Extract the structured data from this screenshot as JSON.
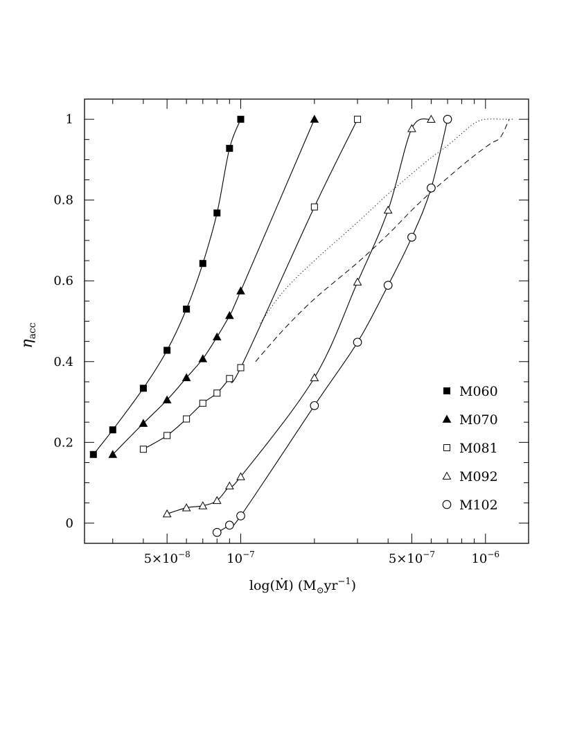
{
  "chart_data": {
    "type": "scatter",
    "xscale": "log",
    "xlim": [
      2.3e-08,
      1.5e-06
    ],
    "ylim": [
      -0.05,
      1.05
    ],
    "xlabel": "log(Ṁ)  (M",
    "xlabel_sub": "⊙",
    "xlabel_tail": "yr",
    "xlabel_sup": "−1",
    "xlabel_close": ")",
    "ylabel": "η",
    "ylabel_sub": "acc",
    "x_tick_labels": [
      {
        "value": 5e-08,
        "mant": "5×10",
        "exp": "−8"
      },
      {
        "value": 1e-07,
        "mant": "10",
        "exp": "−7"
      },
      {
        "value": 5e-07,
        "mant": "5×10",
        "exp": "−7"
      },
      {
        "value": 1e-06,
        "mant": "10",
        "exp": "−6"
      }
    ],
    "y_tick_labels": [
      {
        "value": 0,
        "label": "0"
      },
      {
        "value": 0.2,
        "label": "0.2"
      },
      {
        "value": 0.4,
        "label": "0.4"
      },
      {
        "value": 0.6,
        "label": "0.6"
      },
      {
        "value": 0.8,
        "label": "0.8"
      },
      {
        "value": 1.0,
        "label": "1"
      }
    ],
    "series": [
      {
        "name": "M060",
        "marker": "filled-square",
        "x": [
          2.5e-08,
          3e-08,
          4e-08,
          5e-08,
          6e-08,
          7e-08,
          8e-08,
          9e-08,
          1e-07
        ],
        "y": [
          0.17,
          0.231,
          0.334,
          0.428,
          0.53,
          0.643,
          0.768,
          0.928,
          1.0
        ]
      },
      {
        "name": "M070",
        "marker": "filled-triangle",
        "x": [
          3e-08,
          4e-08,
          5e-08,
          6e-08,
          7e-08,
          8e-08,
          9e-08,
          1e-07,
          2e-07
        ],
        "y": [
          0.17,
          0.247,
          0.305,
          0.36,
          0.407,
          0.461,
          0.514,
          0.575,
          1.0
        ]
      },
      {
        "name": "M081",
        "marker": "open-square",
        "x": [
          4e-08,
          5e-08,
          6e-08,
          7e-08,
          8e-08,
          9e-08,
          1e-07,
          2e-07,
          3e-07
        ],
        "y": [
          0.183,
          0.217,
          0.258,
          0.297,
          0.322,
          0.358,
          0.385,
          0.783,
          1.0
        ]
      },
      {
        "name": "M092",
        "marker": "open-triangle",
        "x": [
          5e-08,
          6e-08,
          7e-08,
          8e-08,
          9e-08,
          1e-07,
          2e-07,
          3e-07,
          4e-07,
          5e-07,
          6e-07
        ],
        "y": [
          0.023,
          0.038,
          0.043,
          0.056,
          0.092,
          0.115,
          0.36,
          0.597,
          0.775,
          0.977,
          1.0
        ]
      },
      {
        "name": "M102",
        "marker": "open-circle",
        "x": [
          8e-08,
          9e-08,
          1e-07,
          2e-07,
          3e-07,
          4e-07,
          5e-07,
          6e-07,
          7e-07
        ],
        "y": [
          -0.023,
          -0.005,
          0.018,
          0.291,
          0.448,
          0.589,
          0.708,
          0.83,
          1.0
        ]
      }
    ],
    "extra_lines": [
      {
        "style": "dotted",
        "x": [
          1.2e-07,
          1.5e-07,
          2e-07,
          3e-07,
          4e-07,
          5e-07,
          6e-07,
          7e-07,
          8e-07,
          9e-07,
          1e-06,
          1.2e-06,
          1.3e-06
        ],
        "y": [
          0.495,
          0.575,
          0.65,
          0.745,
          0.815,
          0.865,
          0.905,
          0.935,
          0.965,
          0.99,
          1.0,
          1.0,
          1.0
        ]
      },
      {
        "style": "dashed",
        "x": [
          1.15e-07,
          1.5e-07,
          2e-07,
          3e-07,
          4e-07,
          5e-07,
          6e-07,
          7e-07,
          8e-07,
          9e-07,
          1.05e-06,
          1.15e-06,
          1.25e-06
        ],
        "y": [
          0.4,
          0.48,
          0.555,
          0.645,
          0.715,
          0.775,
          0.82,
          0.855,
          0.885,
          0.91,
          0.94,
          0.955,
          1.0
        ]
      }
    ],
    "legend_position": "lower-right"
  }
}
